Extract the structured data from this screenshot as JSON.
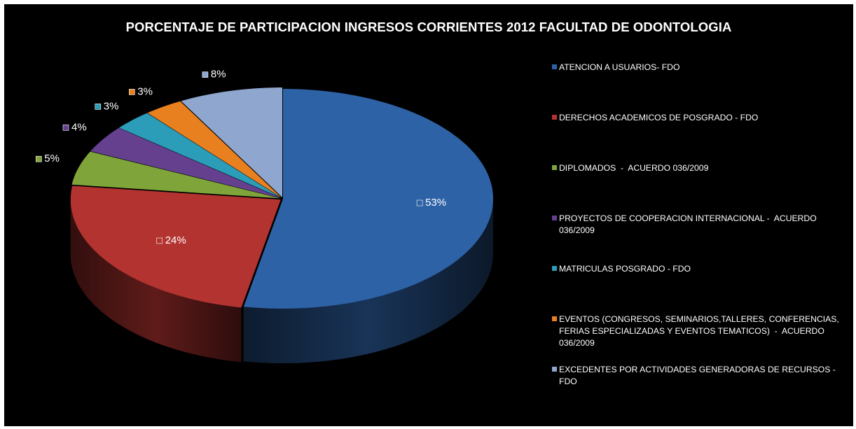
{
  "chart_data": {
    "type": "pie",
    "style": "3d-exploded-top",
    "title": "PORCENTAJE DE PARTICIPACION INGRESOS CORRIENTES 2012 FACULTAD DE ODONTOLOGIA",
    "legend_position": "right",
    "slices": [
      {
        "label": "ATENCION A USUARIOS- FDO",
        "value": 53,
        "display": "53%",
        "color": "#2E62A6"
      },
      {
        "label": "DERECHOS ACADEMICOS DE POSGRADO - FDO",
        "value": 24,
        "display": "24%",
        "color": "#B33330"
      },
      {
        "label": "DIPLOMADOS  -  ACUERDO 036/2009",
        "value": 5,
        "display": "5%",
        "color": "#7FA53A"
      },
      {
        "label": "PROYECTOS DE COOPERACION INTERNACIONAL -  ACUERDO 036/2009",
        "value": 4,
        "display": "4%",
        "color": "#64408F"
      },
      {
        "label": "MATRICULAS POSGRADO - FDO",
        "value": 3,
        "display": "3%",
        "color": "#2B9DB8"
      },
      {
        "label": "EVENTOS (CONGRESOS, SEMINARIOS,TALLERES, CONFERENCIAS, FERIAS ESPECIALIZADAS Y EVENTOS TEMATICOS)  -  ACUERDO 036/2009",
        "value": 3,
        "display": "3%",
        "color": "#E9801F"
      },
      {
        "label": "EXCEDENTES POR ACTIVIDADES GENERADORAS DE RECURSOS - FDO",
        "value": 8,
        "display": "8%",
        "color": "#8FA6CE"
      }
    ]
  }
}
